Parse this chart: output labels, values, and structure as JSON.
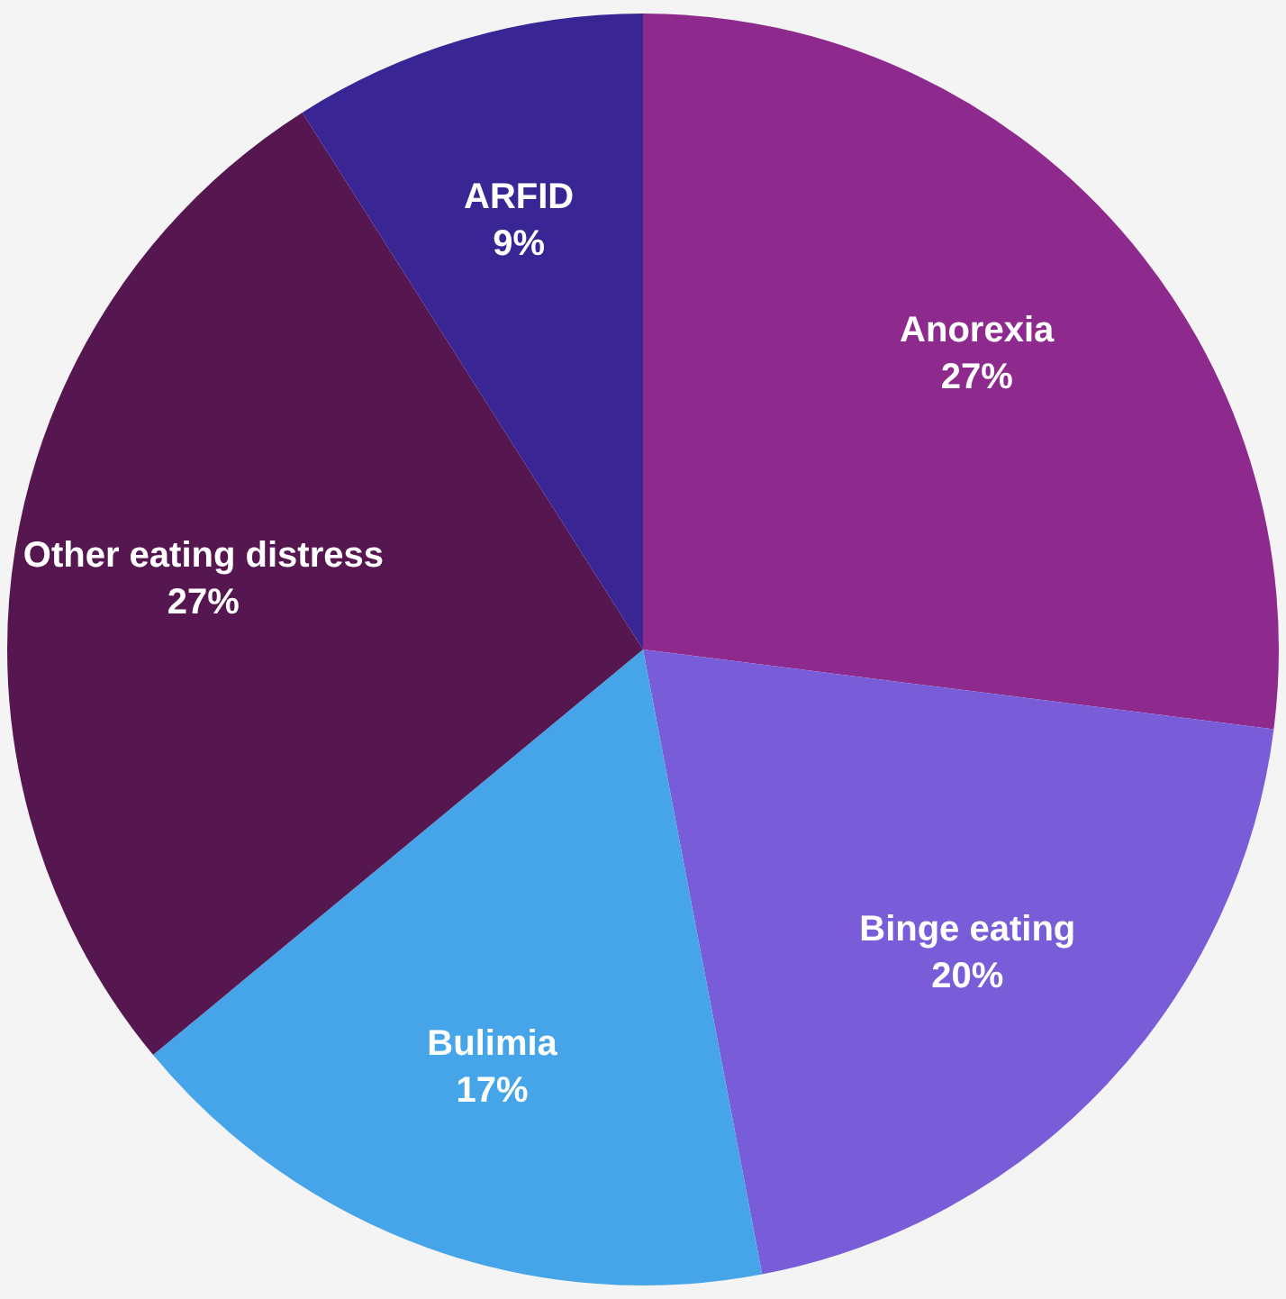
{
  "chart_data": {
    "type": "pie",
    "categories": [
      "Anorexia",
      "Binge eating",
      "Bulimia",
      "Other eating distress",
      "ARFID"
    ],
    "values": [
      27,
      20,
      17,
      27,
      9
    ],
    "value_labels": [
      "27%",
      "20%",
      "17%",
      "27%",
      "9%"
    ],
    "colors": [
      "#8e2a8e",
      "#785cd8",
      "#45a5e8",
      "#561751",
      "#3a2595"
    ],
    "legend": false
  }
}
